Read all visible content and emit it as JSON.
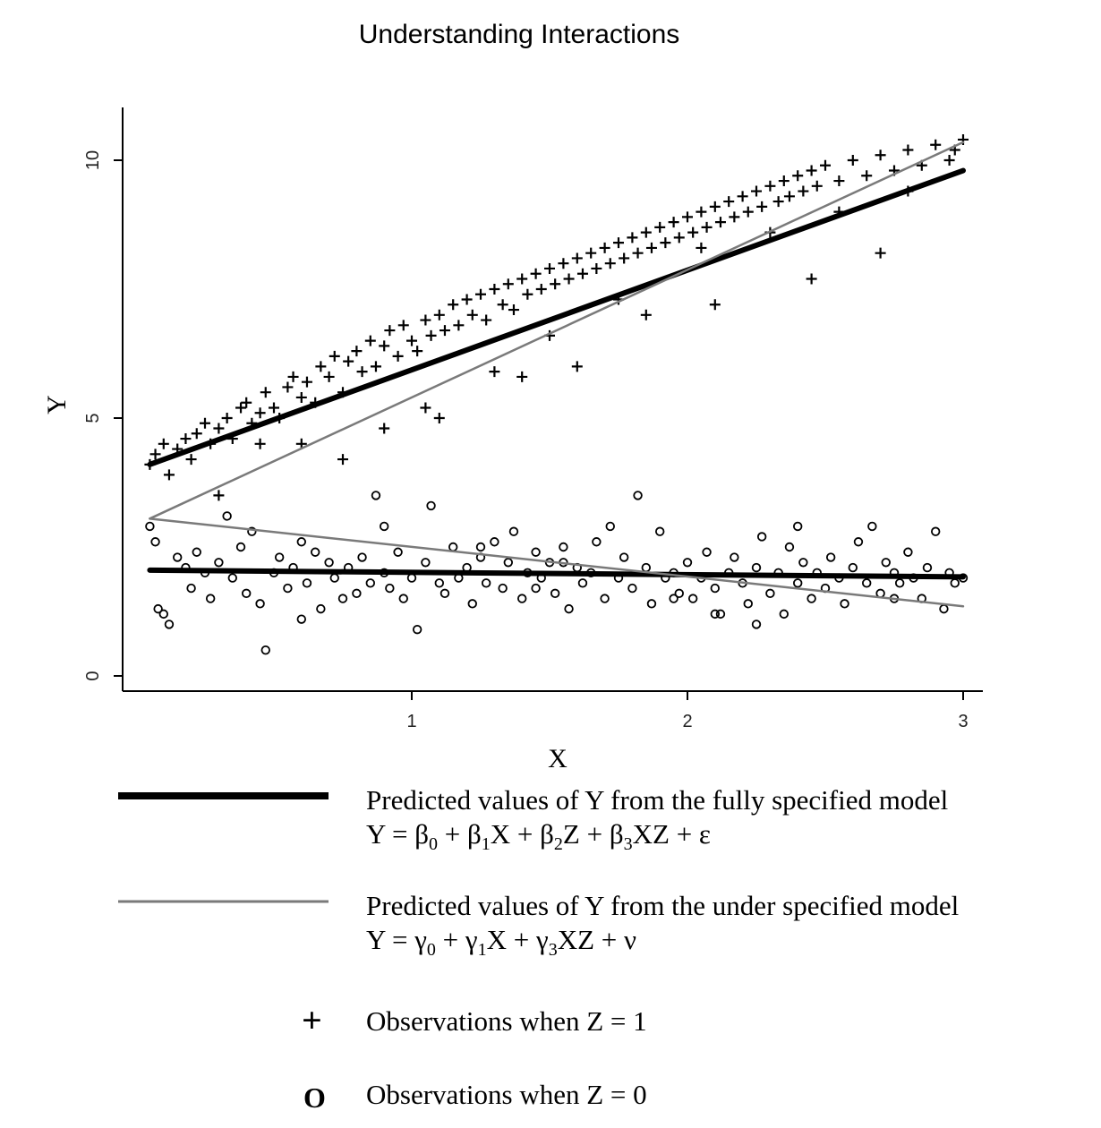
{
  "chart_data": {
    "type": "scatter",
    "title": "Understanding Interactions",
    "xlabel": "X",
    "ylabel": "Y",
    "xlim": [
      0,
      3.05
    ],
    "ylim": [
      -0.3,
      11.0
    ],
    "x_ticks": [
      1,
      2,
      3
    ],
    "y_ticks": [
      0,
      5,
      10
    ],
    "grid": false,
    "legend_position": "bottom",
    "series": [
      {
        "name": "Observations when Z = 1",
        "kind": "points",
        "marker": "+",
        "points": [
          [
            0.05,
            4.1
          ],
          [
            0.07,
            4.3
          ],
          [
            0.1,
            4.5
          ],
          [
            0.12,
            3.9
          ],
          [
            0.15,
            4.4
          ],
          [
            0.18,
            4.6
          ],
          [
            0.2,
            4.2
          ],
          [
            0.22,
            4.7
          ],
          [
            0.25,
            4.9
          ],
          [
            0.27,
            4.5
          ],
          [
            0.3,
            4.8
          ],
          [
            0.33,
            5.0
          ],
          [
            0.35,
            4.6
          ],
          [
            0.38,
            5.2
          ],
          [
            0.4,
            5.3
          ],
          [
            0.42,
            4.9
          ],
          [
            0.45,
            5.1
          ],
          [
            0.47,
            5.5
          ],
          [
            0.5,
            5.2
          ],
          [
            0.52,
            5.0
          ],
          [
            0.55,
            5.6
          ],
          [
            0.57,
            5.8
          ],
          [
            0.6,
            5.4
          ],
          [
            0.62,
            5.7
          ],
          [
            0.65,
            5.3
          ],
          [
            0.67,
            6.0
          ],
          [
            0.7,
            5.8
          ],
          [
            0.72,
            6.2
          ],
          [
            0.75,
            5.5
          ],
          [
            0.77,
            6.1
          ],
          [
            0.8,
            6.3
          ],
          [
            0.82,
            5.9
          ],
          [
            0.85,
            6.5
          ],
          [
            0.87,
            6.0
          ],
          [
            0.9,
            6.4
          ],
          [
            0.92,
            6.7
          ],
          [
            0.95,
            6.2
          ],
          [
            0.97,
            6.8
          ],
          [
            1.0,
            6.5
          ],
          [
            1.02,
            6.3
          ],
          [
            1.05,
            6.9
          ],
          [
            1.07,
            6.6
          ],
          [
            1.1,
            7.0
          ],
          [
            1.12,
            6.7
          ],
          [
            1.15,
            7.2
          ],
          [
            1.17,
            6.8
          ],
          [
            1.2,
            7.3
          ],
          [
            1.22,
            7.0
          ],
          [
            1.25,
            7.4
          ],
          [
            1.27,
            6.9
          ],
          [
            1.3,
            7.5
          ],
          [
            1.33,
            7.2
          ],
          [
            1.35,
            7.6
          ],
          [
            1.37,
            7.1
          ],
          [
            1.4,
            7.7
          ],
          [
            1.42,
            7.4
          ],
          [
            1.45,
            7.8
          ],
          [
            1.47,
            7.5
          ],
          [
            1.5,
            7.9
          ],
          [
            1.52,
            7.6
          ],
          [
            1.55,
            8.0
          ],
          [
            1.57,
            7.7
          ],
          [
            1.6,
            8.1
          ],
          [
            1.62,
            7.8
          ],
          [
            1.65,
            8.2
          ],
          [
            1.67,
            7.9
          ],
          [
            1.7,
            8.3
          ],
          [
            1.72,
            8.0
          ],
          [
            1.75,
            8.4
          ],
          [
            1.77,
            8.1
          ],
          [
            1.8,
            8.5
          ],
          [
            1.82,
            8.2
          ],
          [
            1.85,
            8.6
          ],
          [
            1.87,
            8.3
          ],
          [
            1.9,
            8.7
          ],
          [
            1.92,
            8.4
          ],
          [
            1.95,
            8.8
          ],
          [
            1.97,
            8.5
          ],
          [
            2.0,
            8.9
          ],
          [
            2.02,
            8.6
          ],
          [
            2.05,
            9.0
          ],
          [
            2.07,
            8.7
          ],
          [
            2.1,
            9.1
          ],
          [
            2.12,
            8.8
          ],
          [
            2.15,
            9.2
          ],
          [
            2.17,
            8.9
          ],
          [
            2.2,
            9.3
          ],
          [
            2.22,
            9.0
          ],
          [
            2.25,
            9.4
          ],
          [
            2.27,
            9.1
          ],
          [
            2.3,
            9.5
          ],
          [
            2.33,
            9.2
          ],
          [
            2.35,
            9.6
          ],
          [
            2.37,
            9.3
          ],
          [
            2.4,
            9.7
          ],
          [
            2.42,
            9.4
          ],
          [
            2.45,
            9.8
          ],
          [
            2.47,
            9.5
          ],
          [
            2.5,
            9.9
          ],
          [
            2.55,
            9.6
          ],
          [
            2.6,
            10.0
          ],
          [
            2.65,
            9.7
          ],
          [
            2.7,
            10.1
          ],
          [
            2.75,
            9.8
          ],
          [
            2.8,
            10.2
          ],
          [
            2.85,
            9.9
          ],
          [
            2.9,
            10.3
          ],
          [
            2.95,
            10.0
          ],
          [
            2.97,
            10.2
          ],
          [
            3.0,
            10.4
          ],
          [
            0.3,
            3.5
          ],
          [
            0.6,
            4.5
          ],
          [
            0.9,
            4.8
          ],
          [
            1.1,
            5.0
          ],
          [
            1.4,
            5.8
          ],
          [
            1.6,
            6.0
          ],
          [
            1.85,
            7.0
          ],
          [
            2.1,
            7.2
          ],
          [
            2.45,
            7.7
          ],
          [
            2.7,
            8.2
          ],
          [
            0.45,
            4.5
          ],
          [
            0.75,
            4.2
          ],
          [
            1.05,
            5.2
          ],
          [
            1.3,
            5.9
          ],
          [
            1.5,
            6.6
          ],
          [
            1.75,
            7.3
          ],
          [
            2.05,
            8.3
          ],
          [
            2.3,
            8.6
          ],
          [
            2.55,
            9.0
          ],
          [
            2.8,
            9.4
          ]
        ]
      },
      {
        "name": "Observations when Z = 0",
        "kind": "points",
        "marker": "o",
        "points": [
          [
            0.05,
            2.9
          ],
          [
            0.07,
            2.6
          ],
          [
            0.1,
            1.2
          ],
          [
            0.12,
            1.0
          ],
          [
            0.15,
            2.3
          ],
          [
            0.18,
            2.1
          ],
          [
            0.2,
            1.7
          ],
          [
            0.22,
            2.4
          ],
          [
            0.25,
            2.0
          ],
          [
            0.27,
            1.5
          ],
          [
            0.3,
            2.2
          ],
          [
            0.33,
            3.1
          ],
          [
            0.35,
            1.9
          ],
          [
            0.38,
            2.5
          ],
          [
            0.4,
            1.6
          ],
          [
            0.42,
            2.8
          ],
          [
            0.45,
            1.4
          ],
          [
            0.47,
            0.5
          ],
          [
            0.5,
            2.0
          ],
          [
            0.52,
            2.3
          ],
          [
            0.55,
            1.7
          ],
          [
            0.57,
            2.1
          ],
          [
            0.6,
            2.6
          ],
          [
            0.62,
            1.8
          ],
          [
            0.65,
            2.4
          ],
          [
            0.67,
            1.3
          ],
          [
            0.7,
            2.2
          ],
          [
            0.72,
            1.9
          ],
          [
            0.75,
            1.5
          ],
          [
            0.77,
            2.1
          ],
          [
            0.8,
            1.6
          ],
          [
            0.82,
            2.3
          ],
          [
            0.85,
            1.8
          ],
          [
            0.87,
            3.5
          ],
          [
            0.9,
            2.0
          ],
          [
            0.92,
            1.7
          ],
          [
            0.95,
            2.4
          ],
          [
            0.97,
            1.5
          ],
          [
            1.0,
            1.9
          ],
          [
            1.02,
            0.9
          ],
          [
            1.05,
            2.2
          ],
          [
            1.07,
            3.3
          ],
          [
            1.1,
            1.8
          ],
          [
            1.12,
            1.6
          ],
          [
            1.15,
            2.5
          ],
          [
            1.17,
            1.9
          ],
          [
            1.2,
            2.1
          ],
          [
            1.22,
            1.4
          ],
          [
            1.25,
            2.3
          ],
          [
            1.27,
            1.8
          ],
          [
            1.3,
            2.6
          ],
          [
            1.33,
            1.7
          ],
          [
            1.35,
            2.2
          ],
          [
            1.37,
            2.8
          ],
          [
            1.4,
            1.5
          ],
          [
            1.42,
            2.0
          ],
          [
            1.45,
            2.4
          ],
          [
            1.47,
            1.9
          ],
          [
            1.5,
            2.2
          ],
          [
            1.52,
            1.6
          ],
          [
            1.55,
            2.5
          ],
          [
            1.57,
            1.3
          ],
          [
            1.6,
            2.1
          ],
          [
            1.62,
            1.8
          ],
          [
            1.65,
            2.0
          ],
          [
            1.67,
            2.6
          ],
          [
            1.7,
            1.5
          ],
          [
            1.72,
            2.9
          ],
          [
            1.75,
            1.9
          ],
          [
            1.77,
            2.3
          ],
          [
            1.8,
            1.7
          ],
          [
            1.82,
            3.5
          ],
          [
            1.85,
            2.1
          ],
          [
            1.87,
            1.4
          ],
          [
            1.9,
            2.8
          ],
          [
            1.92,
            1.9
          ],
          [
            1.95,
            2.0
          ],
          [
            1.97,
            1.6
          ],
          [
            2.0,
            2.2
          ],
          [
            2.02,
            1.5
          ],
          [
            2.05,
            1.9
          ],
          [
            2.07,
            2.4
          ],
          [
            2.1,
            1.7
          ],
          [
            2.12,
            1.2
          ],
          [
            2.15,
            2.0
          ],
          [
            2.17,
            2.3
          ],
          [
            2.2,
            1.8
          ],
          [
            2.22,
            1.4
          ],
          [
            2.25,
            2.1
          ],
          [
            2.27,
            2.7
          ],
          [
            2.3,
            1.6
          ],
          [
            2.33,
            2.0
          ],
          [
            2.35,
            1.2
          ],
          [
            2.37,
            2.5
          ],
          [
            2.4,
            1.8
          ],
          [
            2.42,
            2.2
          ],
          [
            2.45,
            1.5
          ],
          [
            2.47,
            2.0
          ],
          [
            2.5,
            1.7
          ],
          [
            2.52,
            2.3
          ],
          [
            2.55,
            1.9
          ],
          [
            2.57,
            1.4
          ],
          [
            2.6,
            2.1
          ],
          [
            2.62,
            2.6
          ],
          [
            2.65,
            1.8
          ],
          [
            2.67,
            2.9
          ],
          [
            2.7,
            1.6
          ],
          [
            2.72,
            2.2
          ],
          [
            2.75,
            2.0
          ],
          [
            2.77,
            1.8
          ],
          [
            2.8,
            2.4
          ],
          [
            2.82,
            1.9
          ],
          [
            2.85,
            1.5
          ],
          [
            2.87,
            2.1
          ],
          [
            2.9,
            2.8
          ],
          [
            2.93,
            1.3
          ],
          [
            2.95,
            2.0
          ],
          [
            2.97,
            1.8
          ],
          [
            3.0,
            1.9
          ],
          [
            0.08,
            1.3
          ],
          [
            0.9,
            2.9
          ],
          [
            1.25,
            2.5
          ],
          [
            1.55,
            2.2
          ],
          [
            2.1,
            1.2
          ],
          [
            2.4,
            2.9
          ],
          [
            0.6,
            1.1
          ],
          [
            1.45,
            1.7
          ],
          [
            2.25,
            1.0
          ],
          [
            2.75,
            1.5
          ],
          [
            1.95,
            1.5
          ]
        ]
      },
      {
        "name": "Predicted values of Y from the fully specified model",
        "kind": "line",
        "equation": "Y = β0 + β1X + β2Z + β3XZ + ε",
        "color": "#000000",
        "segments": [
          {
            "x": [
              0.05,
              3.0
            ],
            "y": [
              4.1,
              9.8
            ]
          },
          {
            "x": [
              0.05,
              3.0
            ],
            "y": [
              2.05,
              1.92
            ]
          }
        ]
      },
      {
        "name": "Predicted values of Y from the under specified model",
        "kind": "line",
        "equation": "Y = γ0 + γ1X + γ3XZ + ν",
        "color": "#7a7a7a",
        "segments": [
          {
            "x": [
              0.05,
              3.0
            ],
            "y": [
              3.05,
              10.35
            ]
          },
          {
            "x": [
              0.05,
              3.0
            ],
            "y": [
              3.05,
              1.35
            ]
          }
        ]
      }
    ]
  },
  "legend": {
    "full_line": "Predicted values of Y from the fully specified model",
    "full_eq_prefix": "Y = β",
    "under_line": "Predicted values of Y from the under specified model",
    "under_eq_prefix": "Y = γ",
    "z1_symbol": "+",
    "z1_label": "Observations when Z = 1",
    "z0_symbol": "O",
    "z0_label": "Observations when Z = 0"
  }
}
